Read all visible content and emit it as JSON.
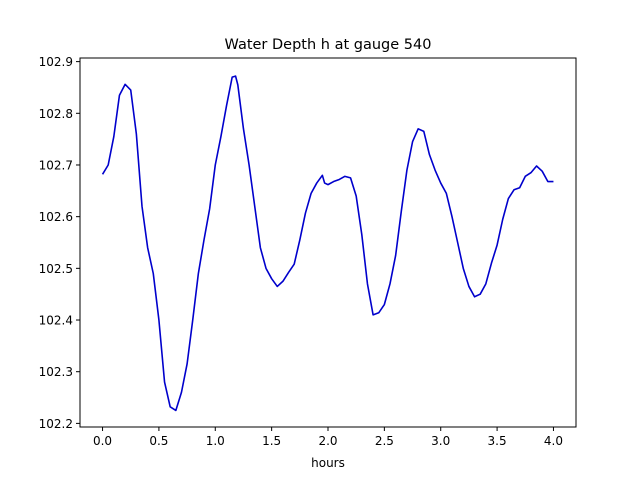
{
  "chart_data": {
    "type": "line",
    "title": "Water Depth h at gauge 540",
    "xlabel": "hours",
    "ylabel": "",
    "xlim": [
      -0.2,
      4.2
    ],
    "ylim": [
      102.193,
      102.907
    ],
    "x_ticks": [
      0.0,
      0.5,
      1.0,
      1.5,
      2.0,
      2.5,
      3.0,
      3.5,
      4.0
    ],
    "x_tick_labels": [
      "0.0",
      "0.5",
      "1.0",
      "1.5",
      "2.0",
      "2.5",
      "3.0",
      "3.5",
      "4.0"
    ],
    "y_ticks": [
      102.2,
      102.3,
      102.4,
      102.5,
      102.6,
      102.7,
      102.8,
      102.9
    ],
    "y_tick_labels": [
      "102.2",
      "102.3",
      "102.4",
      "102.5",
      "102.6",
      "102.7",
      "102.8",
      "102.9"
    ],
    "grid": false,
    "line_color": "#0000cc",
    "series": [
      {
        "name": "",
        "x": [
          0.0,
          0.05,
          0.1,
          0.15,
          0.2,
          0.25,
          0.3,
          0.35,
          0.4,
          0.45,
          0.5,
          0.55,
          0.6,
          0.65,
          0.7,
          0.75,
          0.8,
          0.85,
          0.9,
          0.95,
          1.0,
          1.05,
          1.1,
          1.15,
          1.18,
          1.2,
          1.25,
          1.3,
          1.35,
          1.4,
          1.45,
          1.5,
          1.55,
          1.6,
          1.65,
          1.7,
          1.75,
          1.8,
          1.85,
          1.9,
          1.95,
          1.97,
          2.0,
          2.05,
          2.1,
          2.15,
          2.2,
          2.25,
          2.3,
          2.35,
          2.4,
          2.45,
          2.5,
          2.55,
          2.6,
          2.65,
          2.7,
          2.75,
          2.8,
          2.85,
          2.9,
          2.95,
          3.0,
          3.05,
          3.1,
          3.15,
          3.2,
          3.25,
          3.3,
          3.35,
          3.4,
          3.45,
          3.5,
          3.55,
          3.6,
          3.65,
          3.7,
          3.75,
          3.8,
          3.85,
          3.9,
          3.95,
          4.0
        ],
        "y": [
          102.682,
          102.7,
          102.755,
          102.835,
          102.856,
          102.845,
          102.76,
          102.62,
          102.54,
          102.49,
          102.4,
          102.28,
          102.232,
          102.225,
          102.26,
          102.315,
          102.4,
          102.49,
          102.555,
          102.615,
          102.7,
          102.755,
          102.815,
          102.87,
          102.872,
          102.855,
          102.77,
          102.7,
          102.62,
          102.54,
          102.5,
          102.48,
          102.465,
          102.475,
          102.492,
          102.508,
          102.555,
          102.607,
          102.645,
          102.665,
          102.68,
          102.665,
          102.662,
          102.668,
          102.672,
          102.678,
          102.675,
          102.64,
          102.565,
          102.47,
          102.41,
          102.414,
          102.43,
          102.47,
          102.525,
          102.61,
          102.69,
          102.745,
          102.77,
          102.765,
          102.72,
          102.69,
          102.665,
          102.645,
          102.6,
          102.55,
          102.5,
          102.465,
          102.445,
          102.45,
          102.47,
          102.51,
          102.545,
          102.595,
          102.635,
          102.652,
          102.656,
          102.678,
          102.685,
          102.698,
          102.688,
          102.668,
          102.668
        ]
      }
    ]
  }
}
